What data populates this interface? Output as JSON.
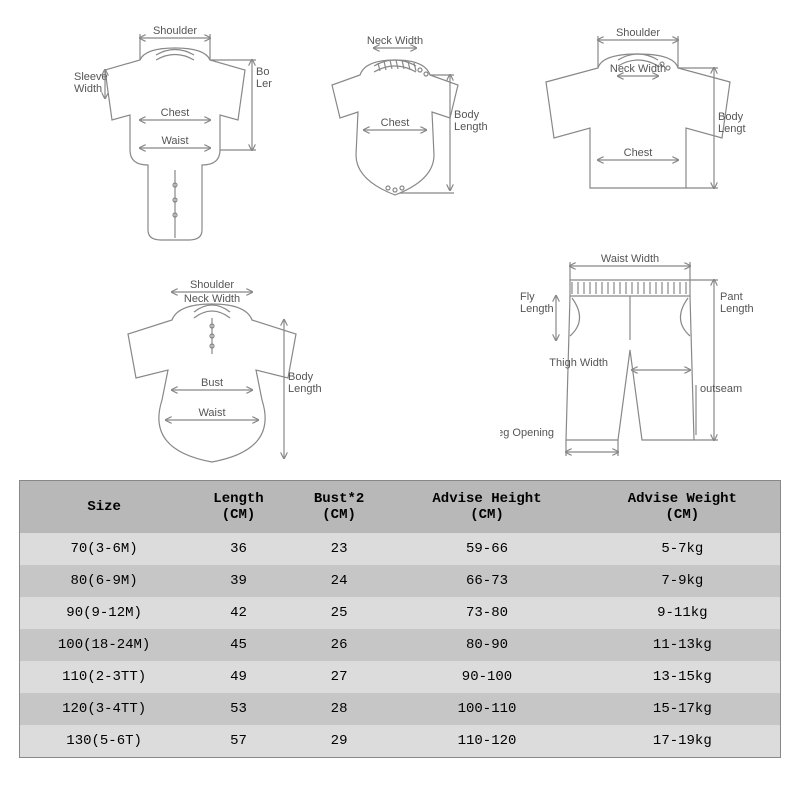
{
  "diagrams": {
    "stroke_color": "#888888",
    "label_color": "#555555",
    "label_fontsize": 11,
    "labels": {
      "shoulder": "Shoulder",
      "neck_width": "Neck Width",
      "sleeve_width": "Sleeve\nWidth",
      "body_length": "Body\nLength",
      "body_length_trunc": "Bo\nLer",
      "body_length_trunc2": "Body\nLengt",
      "chest": "Chest",
      "waist": "Waist",
      "bust": "Bust",
      "waist_width": "Waist Width",
      "fly_length": "Fly\nLength",
      "pant_length": "Pant\nLength",
      "thigh_width": "Thigh Width",
      "outseam": "outseam",
      "leg_opening": "Leg Opening"
    }
  },
  "size_table": {
    "header_bg": "#b8b8b8",
    "row_odd_bg": "#dcdcdc",
    "row_even_bg": "#c6c6c6",
    "text_color": "#000000",
    "font_family": "Courier New",
    "header_fontsize": 14,
    "cell_fontsize": 14,
    "columns": [
      {
        "title": "Size",
        "sub": ""
      },
      {
        "title": "Length",
        "sub": "(CM)"
      },
      {
        "title": "Bust*2",
        "sub": "(CM)"
      },
      {
        "title": "Advise Height",
        "sub": "(CM)"
      },
      {
        "title": "Advise Weight",
        "sub": "(CM)"
      }
    ],
    "rows": [
      [
        "70(3-6M)",
        "36",
        "23",
        "59-66",
        "5-7kg"
      ],
      [
        "80(6-9M)",
        "39",
        "24",
        "66-73",
        "7-9kg"
      ],
      [
        "90(9-12M)",
        "42",
        "25",
        "73-80",
        "9-11kg"
      ],
      [
        "100(18-24M)",
        "45",
        "26",
        "80-90",
        "11-13kg"
      ],
      [
        "110(2-3TT)",
        "49",
        "27",
        "90-100",
        "13-15kg"
      ],
      [
        "120(3-4TT)",
        "53",
        "28",
        "100-110",
        "15-17kg"
      ],
      [
        "130(5-6T)",
        "57",
        "29",
        "110-120",
        "17-19kg"
      ]
    ]
  }
}
